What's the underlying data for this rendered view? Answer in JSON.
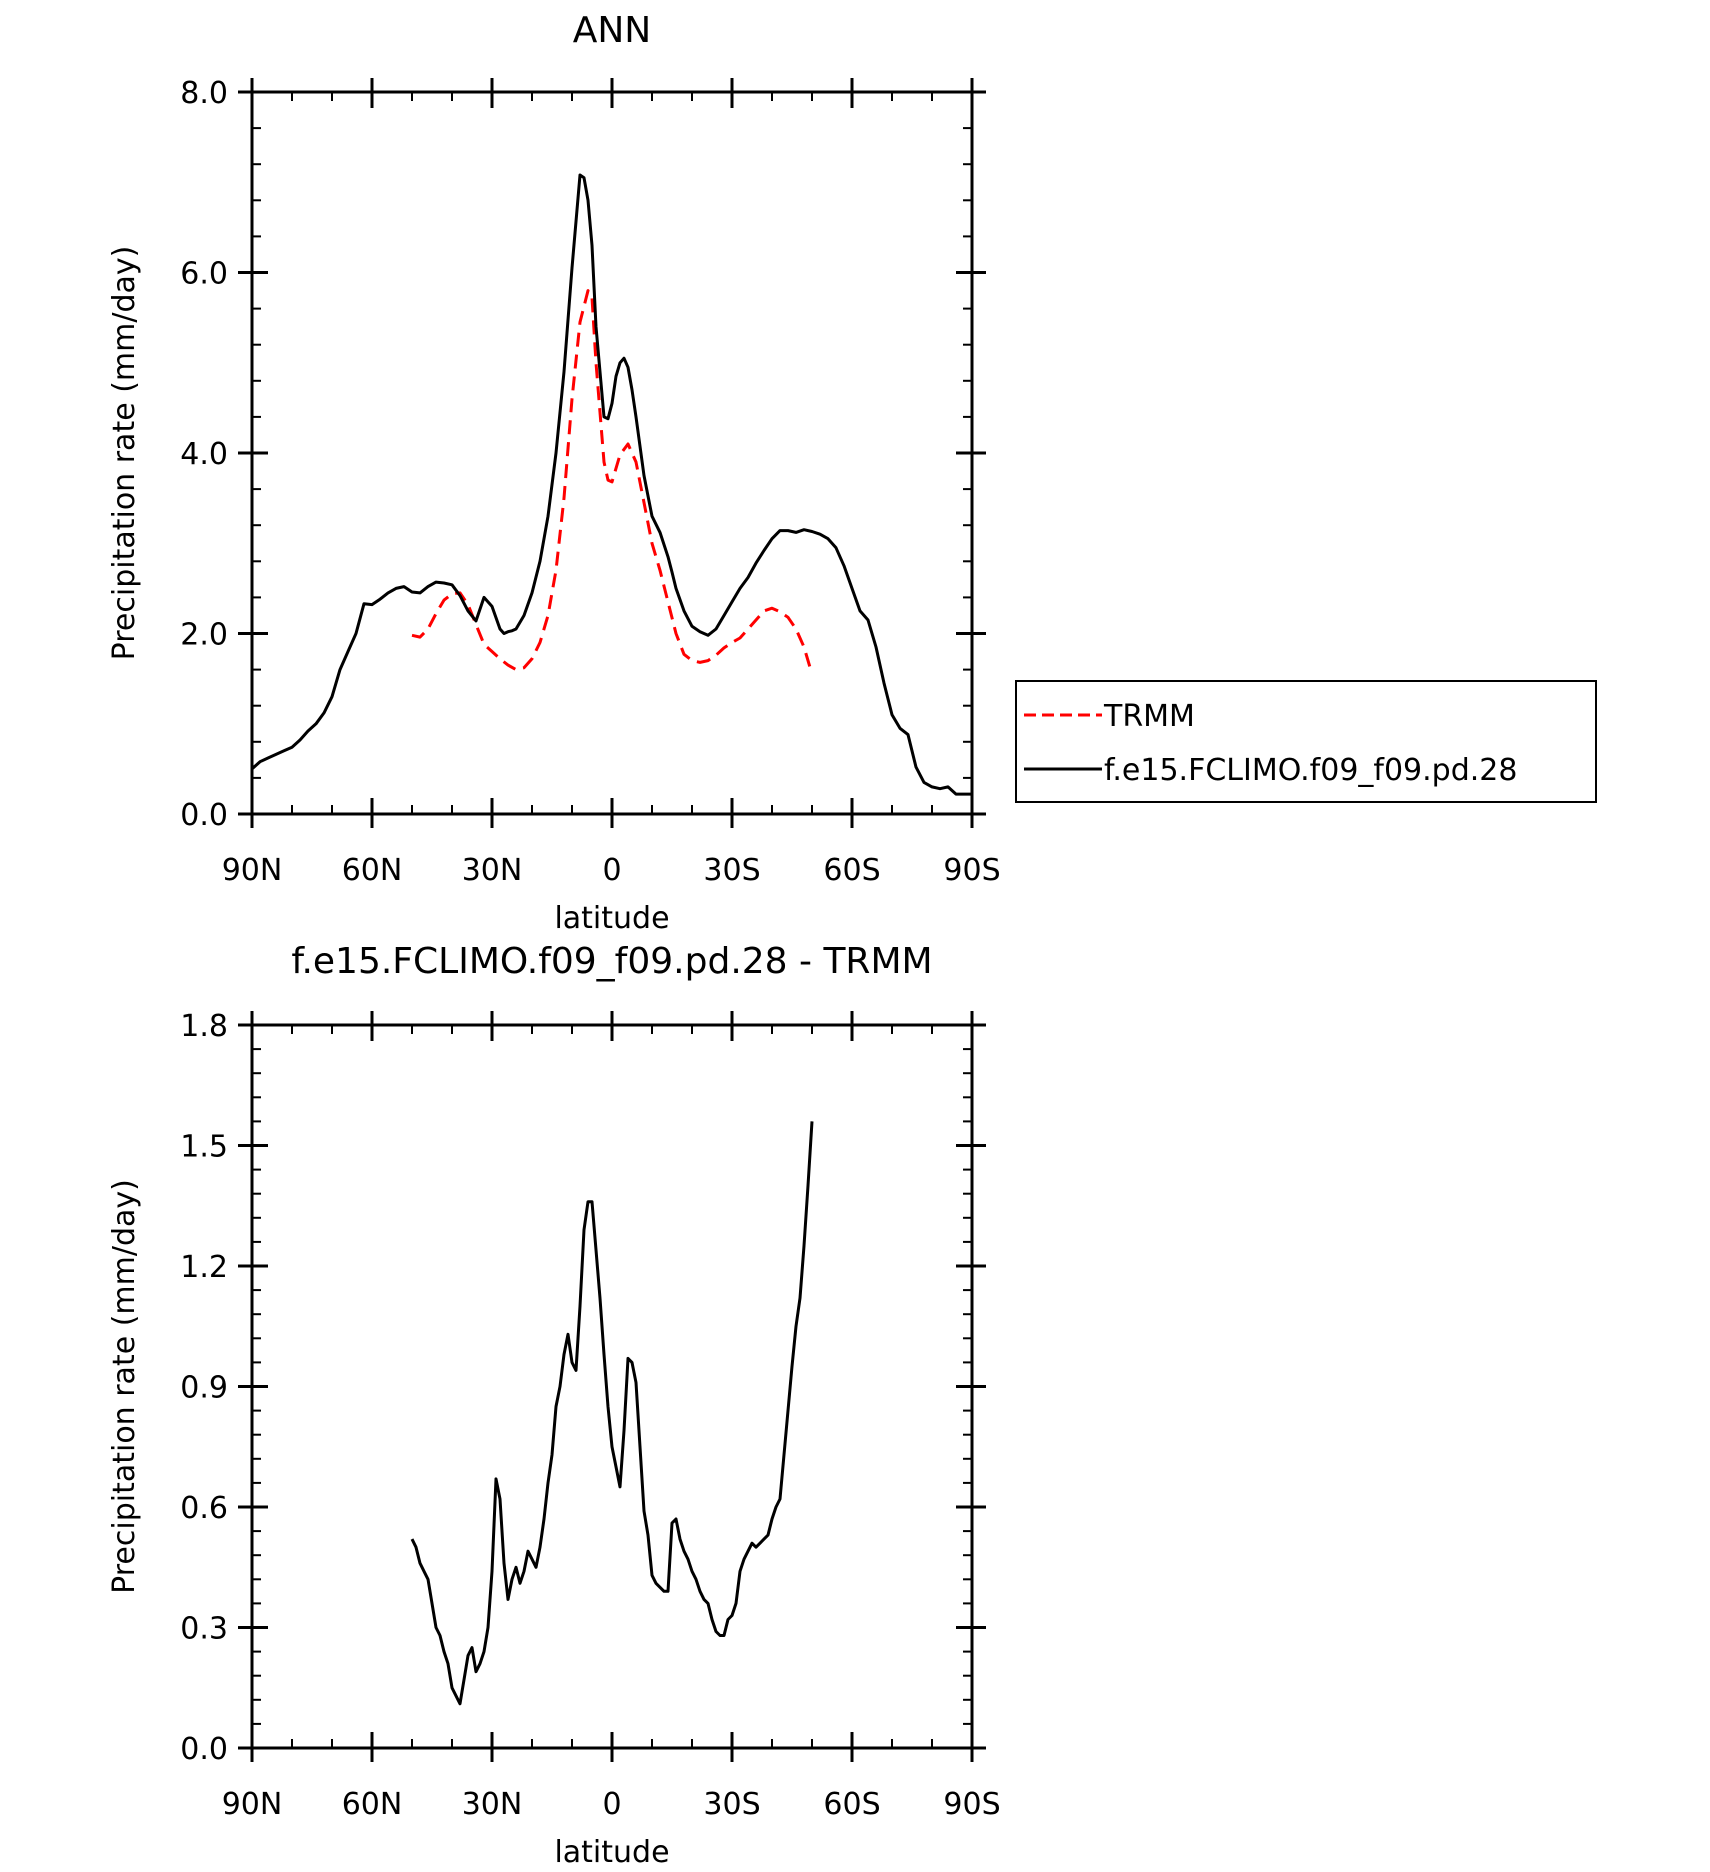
{
  "chart_data": [
    {
      "type": "line",
      "title": "ANN",
      "xlabel": "latitude",
      "ylabel": "Precipitation rate (mm/day)",
      "xlim": [
        90,
        -90
      ],
      "ylim": [
        0,
        8
      ],
      "x_ticks": [
        90,
        60,
        30,
        0,
        -30,
        -60,
        -90
      ],
      "x_tick_labels": [
        "90N",
        "60N",
        "30N",
        "0",
        "30S",
        "60S",
        "90S"
      ],
      "y_ticks": [
        0,
        2,
        4,
        6,
        8
      ],
      "y_tick_labels": [
        "0.0",
        "2.0",
        "4.0",
        "6.0",
        "8.0"
      ],
      "y_minor_step": 0.4,
      "x_minor_step": 10,
      "grid": false,
      "legend_position": "right",
      "series": [
        {
          "name": "TRMM",
          "color": "#ff0000",
          "style": "dashed",
          "x": [
            50,
            48,
            46,
            44,
            42,
            40,
            38,
            36,
            34,
            32,
            30,
            28,
            26,
            24,
            22,
            20,
            18,
            16,
            14,
            12,
            10,
            8,
            6,
            5,
            4,
            2,
            1,
            0,
            -2,
            -4,
            -6,
            -8,
            -10,
            -12,
            -14,
            -16,
            -18,
            -20,
            -22,
            -24,
            -26,
            -28,
            -30,
            -32,
            -34,
            -36,
            -38,
            -40,
            -42,
            -44,
            -46,
            -48,
            -50
          ],
          "y": [
            1.98,
            1.96,
            2.05,
            2.22,
            2.37,
            2.44,
            2.45,
            2.32,
            2.1,
            1.88,
            1.8,
            1.72,
            1.65,
            1.6,
            1.62,
            1.72,
            1.9,
            2.2,
            2.7,
            3.5,
            4.6,
            5.45,
            5.8,
            5.72,
            5.0,
            3.9,
            3.7,
            3.68,
            3.98,
            4.1,
            3.9,
            3.45,
            3.0,
            2.7,
            2.35,
            2.0,
            1.77,
            1.7,
            1.68,
            1.7,
            1.76,
            1.84,
            1.9,
            1.95,
            2.05,
            2.15,
            2.25,
            2.28,
            2.24,
            2.18,
            2.05,
            1.85,
            1.55
          ]
        },
        {
          "name": "f.e15.FCLIMO.f09_f09.pd.28",
          "color": "#000000",
          "style": "solid",
          "x": [
            90,
            88,
            86,
            84,
            82,
            80,
            78,
            76,
            74,
            72,
            70,
            68,
            66,
            64,
            62,
            60,
            58,
            56,
            54,
            52,
            50,
            48,
            46,
            44,
            42,
            40,
            38,
            36,
            34,
            32,
            30,
            28,
            27,
            26,
            25,
            24,
            22,
            20,
            18,
            16,
            14,
            12,
            10,
            8,
            7,
            6,
            5,
            4,
            2,
            1,
            0,
            -1,
            -2,
            -3,
            -4,
            -5,
            -6,
            -8,
            -10,
            -12,
            -14,
            -15,
            -16,
            -18,
            -20,
            -22,
            -24,
            -26,
            -28,
            -30,
            -32,
            -34,
            -36,
            -38,
            -40,
            -42,
            -44,
            -46,
            -48,
            -50,
            -52,
            -54,
            -56,
            -58,
            -60,
            -62,
            -64,
            -66,
            -68,
            -70,
            -72,
            -74,
            -76,
            -78,
            -80,
            -82,
            -84,
            -86,
            -88,
            -90
          ],
          "y": [
            0.5,
            0.58,
            0.62,
            0.66,
            0.7,
            0.74,
            0.82,
            0.92,
            1.0,
            1.12,
            1.3,
            1.6,
            1.8,
            2.0,
            2.33,
            2.32,
            2.38,
            2.45,
            2.5,
            2.52,
            2.46,
            2.45,
            2.52,
            2.57,
            2.56,
            2.54,
            2.42,
            2.25,
            2.14,
            2.4,
            2.3,
            2.05,
            2.0,
            2.02,
            2.03,
            2.05,
            2.2,
            2.45,
            2.8,
            3.3,
            4.0,
            4.9,
            6.05,
            7.08,
            7.05,
            6.8,
            6.3,
            5.4,
            4.4,
            4.38,
            4.55,
            4.85,
            5.0,
            5.05,
            4.95,
            4.7,
            4.4,
            3.75,
            3.3,
            3.12,
            2.85,
            2.68,
            2.5,
            2.25,
            2.08,
            2.02,
            1.98,
            2.05,
            2.2,
            2.35,
            2.5,
            2.62,
            2.78,
            2.92,
            3.05,
            3.14,
            3.14,
            3.12,
            3.15,
            3.13,
            3.1,
            3.05,
            2.95,
            2.75,
            2.5,
            2.25,
            2.15,
            1.85,
            1.45,
            1.1,
            0.95,
            0.88,
            0.52,
            0.35,
            0.3,
            0.28,
            0.3,
            0.22,
            0.22,
            0.22
          ]
        }
      ]
    },
    {
      "type": "line",
      "title": "f.e15.FCLIMO.f09_f09.pd.28 - TRMM",
      "xlabel": "latitude",
      "ylabel": "Precipitation rate (mm/day)",
      "xlim": [
        90,
        -90
      ],
      "ylim": [
        0,
        1.8
      ],
      "x_ticks": [
        90,
        60,
        30,
        0,
        -30,
        -60,
        -90
      ],
      "x_tick_labels": [
        "90N",
        "60N",
        "30N",
        "0",
        "30S",
        "60S",
        "90S"
      ],
      "y_ticks": [
        0,
        0.3,
        0.6,
        0.9,
        1.2,
        1.5,
        1.8
      ],
      "y_tick_labels": [
        "0.0",
        "0.3",
        "0.6",
        "0.9",
        "1.2",
        "1.5",
        "1.8"
      ],
      "y_minor_step": 0.06,
      "x_minor_step": 10,
      "grid": false,
      "series": [
        {
          "color": "#000000",
          "style": "solid",
          "x": [
            50,
            49,
            48,
            47,
            46,
            45,
            44,
            43,
            42,
            41,
            40,
            39,
            38,
            37,
            36,
            35,
            34,
            33,
            32,
            31,
            30,
            29,
            28,
            27,
            26,
            25,
            24,
            23,
            22,
            21,
            20,
            19,
            18,
            17,
            16,
            15,
            14,
            13,
            12,
            11,
            10,
            9,
            8,
            7,
            6,
            5,
            4,
            3,
            2,
            1,
            0,
            -1,
            -2,
            -3,
            -4,
            -5,
            -6,
            -7,
            -8,
            -9,
            -10,
            -11,
            -12,
            -13,
            -14,
            -15,
            -16,
            -17,
            -18,
            -19,
            -20,
            -21,
            -22,
            -23,
            -24,
            -25,
            -26,
            -27,
            -28,
            -29,
            -30,
            -31,
            -32,
            -33,
            -34,
            -35,
            -36,
            -37,
            -38,
            -39,
            -40,
            -41,
            -42,
            -43,
            -44,
            -45,
            -46,
            -47,
            -48,
            -49,
            -50
          ],
          "y": [
            0.52,
            0.5,
            0.46,
            0.44,
            0.42,
            0.36,
            0.3,
            0.28,
            0.24,
            0.21,
            0.15,
            0.13,
            0.11,
            0.17,
            0.23,
            0.25,
            0.19,
            0.21,
            0.24,
            0.3,
            0.44,
            0.67,
            0.62,
            0.46,
            0.37,
            0.42,
            0.45,
            0.41,
            0.44,
            0.49,
            0.47,
            0.45,
            0.5,
            0.57,
            0.66,
            0.73,
            0.85,
            0.9,
            0.98,
            1.03,
            0.96,
            0.94,
            1.1,
            1.29,
            1.36,
            1.36,
            1.24,
            1.12,
            0.98,
            0.85,
            0.75,
            0.7,
            0.65,
            0.79,
            0.97,
            0.96,
            0.91,
            0.75,
            0.59,
            0.53,
            0.43,
            0.41,
            0.4,
            0.39,
            0.39,
            0.56,
            0.57,
            0.52,
            0.49,
            0.47,
            0.44,
            0.42,
            0.39,
            0.37,
            0.36,
            0.32,
            0.29,
            0.28,
            0.28,
            0.32,
            0.33,
            0.36,
            0.44,
            0.47,
            0.49,
            0.51,
            0.5,
            0.51,
            0.52,
            0.53,
            0.57,
            0.6,
            0.62,
            0.73,
            0.84,
            0.95,
            1.05,
            1.12,
            1.25,
            1.4,
            1.56
          ]
        }
      ]
    }
  ]
}
